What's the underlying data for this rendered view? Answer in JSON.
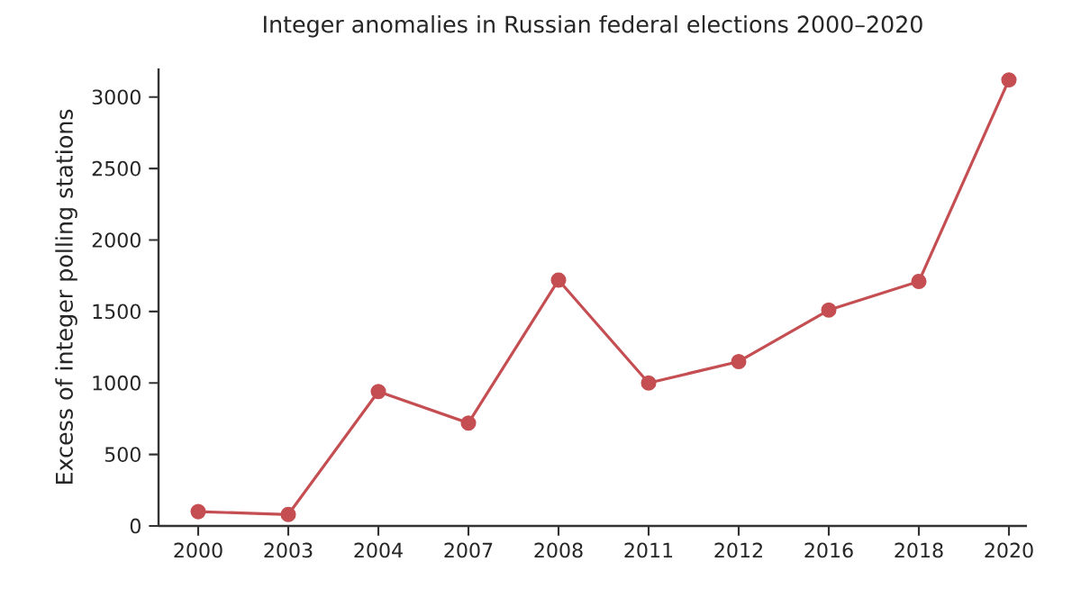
{
  "chart_data": {
    "type": "line",
    "title": "Integer anomalies in Russian federal elections 2000–2020",
    "ylabel": "Excess of integer polling stations",
    "categories": [
      "2000",
      "2003",
      "2004",
      "2007",
      "2008",
      "2011",
      "2012",
      "2016",
      "2018",
      "2020"
    ],
    "values": [
      100,
      80,
      940,
      720,
      1720,
      1000,
      1150,
      1510,
      1710,
      3120
    ],
    "color": "#c44e52",
    "marker": "circle",
    "line_style": "solid",
    "ylim": [
      0,
      3200
    ],
    "yticks": [
      0,
      500,
      1000,
      1500,
      2000,
      2500,
      3000
    ],
    "grid": false
  }
}
